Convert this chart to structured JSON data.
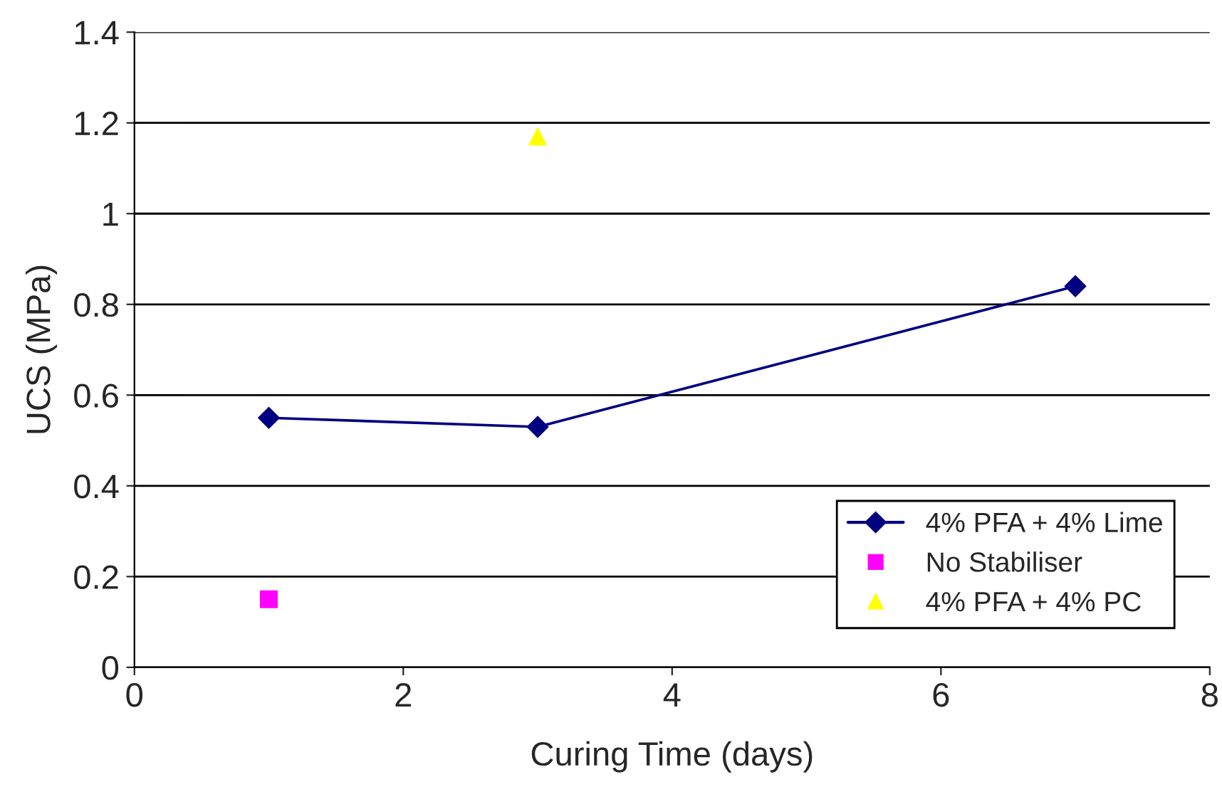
{
  "chart_data": {
    "type": "line",
    "xlabel": "Curing Time (days)",
    "ylabel": "UCS (MPa)",
    "xlim": [
      0,
      8
    ],
    "xticks": [
      0,
      2,
      4,
      6,
      8
    ],
    "ylim": [
      0,
      1.4
    ],
    "yticks": [
      0,
      0.2,
      0.4,
      0.6,
      0.8,
      1,
      1.2,
      1.4
    ],
    "grid": "y",
    "legend": "lower right",
    "series": [
      {
        "name": "4% PFA + 4% Lime",
        "color": "#000080",
        "marker": "diamond",
        "line_style": "solid",
        "x": [
          1,
          3,
          7
        ],
        "values": [
          0.55,
          0.53,
          0.84
        ]
      },
      {
        "name": "No Stabiliser",
        "type": "scatter",
        "color": "#ff00ff",
        "marker": "square",
        "x": [
          1
        ],
        "values": [
          0.15
        ]
      },
      {
        "name": "4% PFA + 4% PC",
        "type": "scatter",
        "color": "#ffff00",
        "marker": "triangle",
        "x": [
          3
        ],
        "values": [
          1.17
        ]
      }
    ]
  }
}
